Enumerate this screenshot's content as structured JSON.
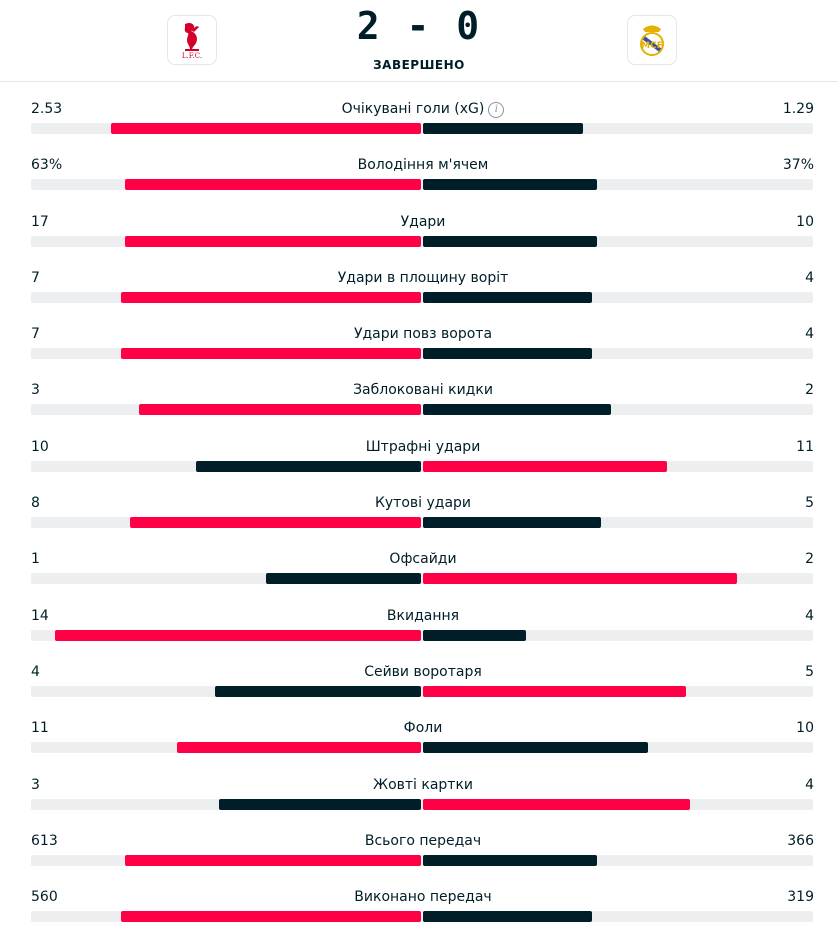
{
  "match": {
    "score": "2 - 0",
    "status": "ЗАВЕРШЕНО",
    "home_logo_text": "L.F.C.",
    "colors": {
      "leader": "#ff0046",
      "trailer": "#001e28",
      "track": "#eceef0"
    }
  },
  "stats": [
    {
      "label": "Очікувані голи (xG)",
      "home": "2.53",
      "away": "1.29",
      "info": true,
      "home_share": 0.66,
      "away_share": 0.34
    },
    {
      "label": "Володіння м'ячем",
      "home": "63%",
      "away": "37%",
      "home_share": 0.63,
      "away_share": 0.37
    },
    {
      "label": "Удари",
      "home": "17",
      "away": "10",
      "home_share": 0.63,
      "away_share": 0.37
    },
    {
      "label": "Удари в площину воріт",
      "home": "7",
      "away": "4",
      "home_share": 0.64,
      "away_share": 0.36
    },
    {
      "label": "Удари повз ворота",
      "home": "7",
      "away": "4",
      "home_share": 0.64,
      "away_share": 0.36
    },
    {
      "label": "Заблоковані кидки",
      "home": "3",
      "away": "2",
      "home_share": 0.6,
      "away_share": 0.4
    },
    {
      "label": "Штрафні удари",
      "home": "10",
      "away": "11",
      "home_share": 0.48,
      "away_share": 0.52
    },
    {
      "label": "Кутові удари",
      "home": "8",
      "away": "5",
      "home_share": 0.62,
      "away_share": 0.38
    },
    {
      "label": "Офсайди",
      "home": "1",
      "away": "2",
      "home_share": 0.33,
      "away_share": 0.67
    },
    {
      "label": "Вкидання",
      "home": "14",
      "away": "4",
      "home_share": 0.78,
      "away_share": 0.22
    },
    {
      "label": "Сейви воротаря",
      "home": "4",
      "away": "5",
      "home_share": 0.44,
      "away_share": 0.56
    },
    {
      "label": "Фоли",
      "home": "11",
      "away": "10",
      "home_share": 0.52,
      "away_share": 0.48
    },
    {
      "label": "Жовті картки",
      "home": "3",
      "away": "4",
      "home_share": 0.43,
      "away_share": 0.57
    },
    {
      "label": "Всього передач",
      "home": "613",
      "away": "366",
      "home_share": 0.63,
      "away_share": 0.37
    },
    {
      "label": "Виконано передач",
      "home": "560",
      "away": "319",
      "home_share": 0.64,
      "away_share": 0.36
    }
  ]
}
